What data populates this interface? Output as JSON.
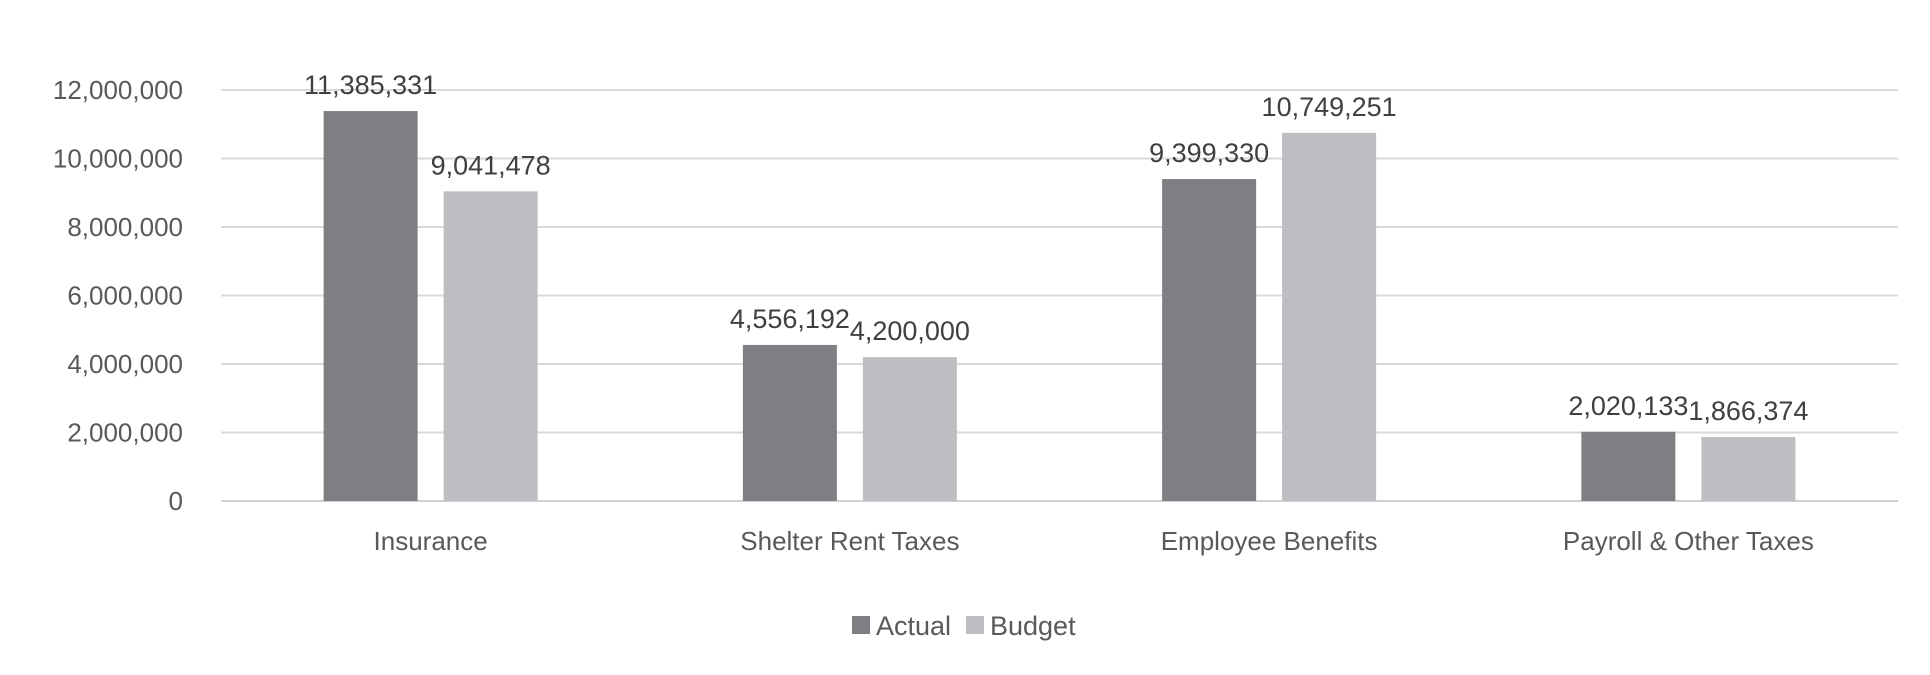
{
  "chart_data": {
    "type": "bar",
    "title": "",
    "xlabel": "",
    "ylabel": "",
    "ylim": [
      0,
      12000000
    ],
    "yticks": [
      0,
      2000000,
      4000000,
      6000000,
      8000000,
      10000000,
      12000000
    ],
    "ytick_labels": [
      "0",
      "2,000,000",
      "4,000,000",
      "6,000,000",
      "8,000,000",
      "10,000,000",
      "12,000,000"
    ],
    "grid": true,
    "legend_position": "bottom-center",
    "categories": [
      "Insurance",
      "Shelter Rent Taxes",
      "Employee Benefits",
      "Payroll & Other Taxes"
    ],
    "series": [
      {
        "name": "Actual",
        "color": "#7F7F83",
        "values": [
          11385331,
          4556192,
          9399330,
          2020133
        ],
        "labels": [
          "11,385,331",
          "4,556,192",
          "9,399,330",
          "2,020,133"
        ]
      },
      {
        "name": "Budget",
        "color": "#BDBEC1",
        "values": [
          9041478,
          4200000,
          10749251,
          1866374
        ],
        "labels": [
          "9,041,478",
          "4,200,000",
          "10,749,251",
          "1,866,374"
        ]
      }
    ]
  }
}
